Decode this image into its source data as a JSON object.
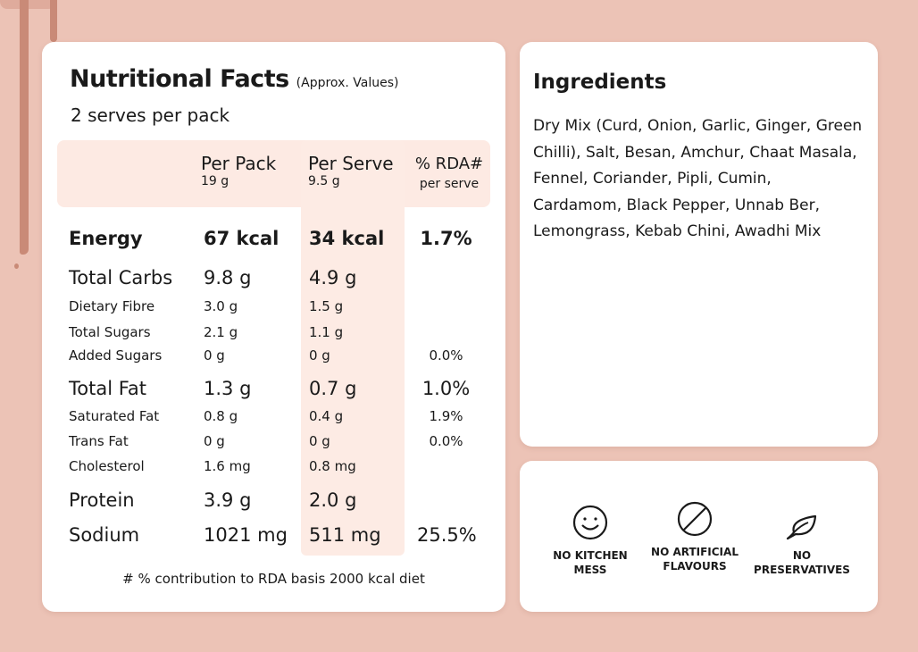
{
  "nutrition": {
    "title": "Nutritional Facts",
    "subtitle": "(Approx. Values)",
    "serves": "2 serves per pack",
    "headers": {
      "per_pack": "Per Pack",
      "per_pack_sub": "19 g",
      "per_serve": "Per Serve",
      "per_serve_sub": "9.5 g",
      "rda": "% RDA#",
      "rda_sub": "per serve"
    },
    "rows": [
      {
        "name": "Energy",
        "pack": "67 kcal",
        "serve": "34 kcal",
        "rda": "1.7%"
      },
      {
        "name": "Total Carbs",
        "pack": "9.8 g",
        "serve": "4.9 g",
        "rda": ""
      },
      {
        "name": "Dietary Fibre",
        "pack": "3.0 g",
        "serve": "1.5 g",
        "rda": ""
      },
      {
        "name": "Total Sugars",
        "pack": "2.1 g",
        "serve": "1.1 g",
        "rda": ""
      },
      {
        "name": "Added Sugars",
        "pack": "0 g",
        "serve": "0 g",
        "rda": "0.0%"
      },
      {
        "name": "Total Fat",
        "pack": "1.3 g",
        "serve": "0.7 g",
        "rda": "1.0%"
      },
      {
        "name": "Saturated Fat",
        "pack": "0.8 g",
        "serve": "0.4 g",
        "rda": "1.9%"
      },
      {
        "name": "Trans Fat",
        "pack": "0 g",
        "serve": "0 g",
        "rda": "0.0%"
      },
      {
        "name": "Cholesterol",
        "pack": "1.6 mg",
        "serve": "0.8 mg",
        "rda": ""
      },
      {
        "name": "Protein",
        "pack": "3.9 g",
        "serve": "2.0 g",
        "rda": ""
      },
      {
        "name": "Sodium",
        "pack": "1021 mg",
        "serve": "511 mg",
        "rda": "25.5%"
      }
    ],
    "footnote": "# % contribution to RDA basis 2000 kcal diet"
  },
  "ingredients": {
    "title": "Ingredients",
    "text": "Dry Mix (Curd, Onion, Garlic, Ginger, Green Chilli), Salt, Besan, Amchur, Chaat Masala, Fennel, Coriander, Pipli, Cumin, Cardamom, Black Pepper, Unnab Ber, Lemongrass, Kebab Chini, Awadhi Mix"
  },
  "badges": [
    {
      "icon": "smiley-icon",
      "label": "NO KITCHEN MESS"
    },
    {
      "icon": "prohibited-icon",
      "label": "NO ARTIFICIAL FLAVOURS"
    },
    {
      "icon": "leaf-icon",
      "label": "NO PRESERVATIVES"
    }
  ]
}
